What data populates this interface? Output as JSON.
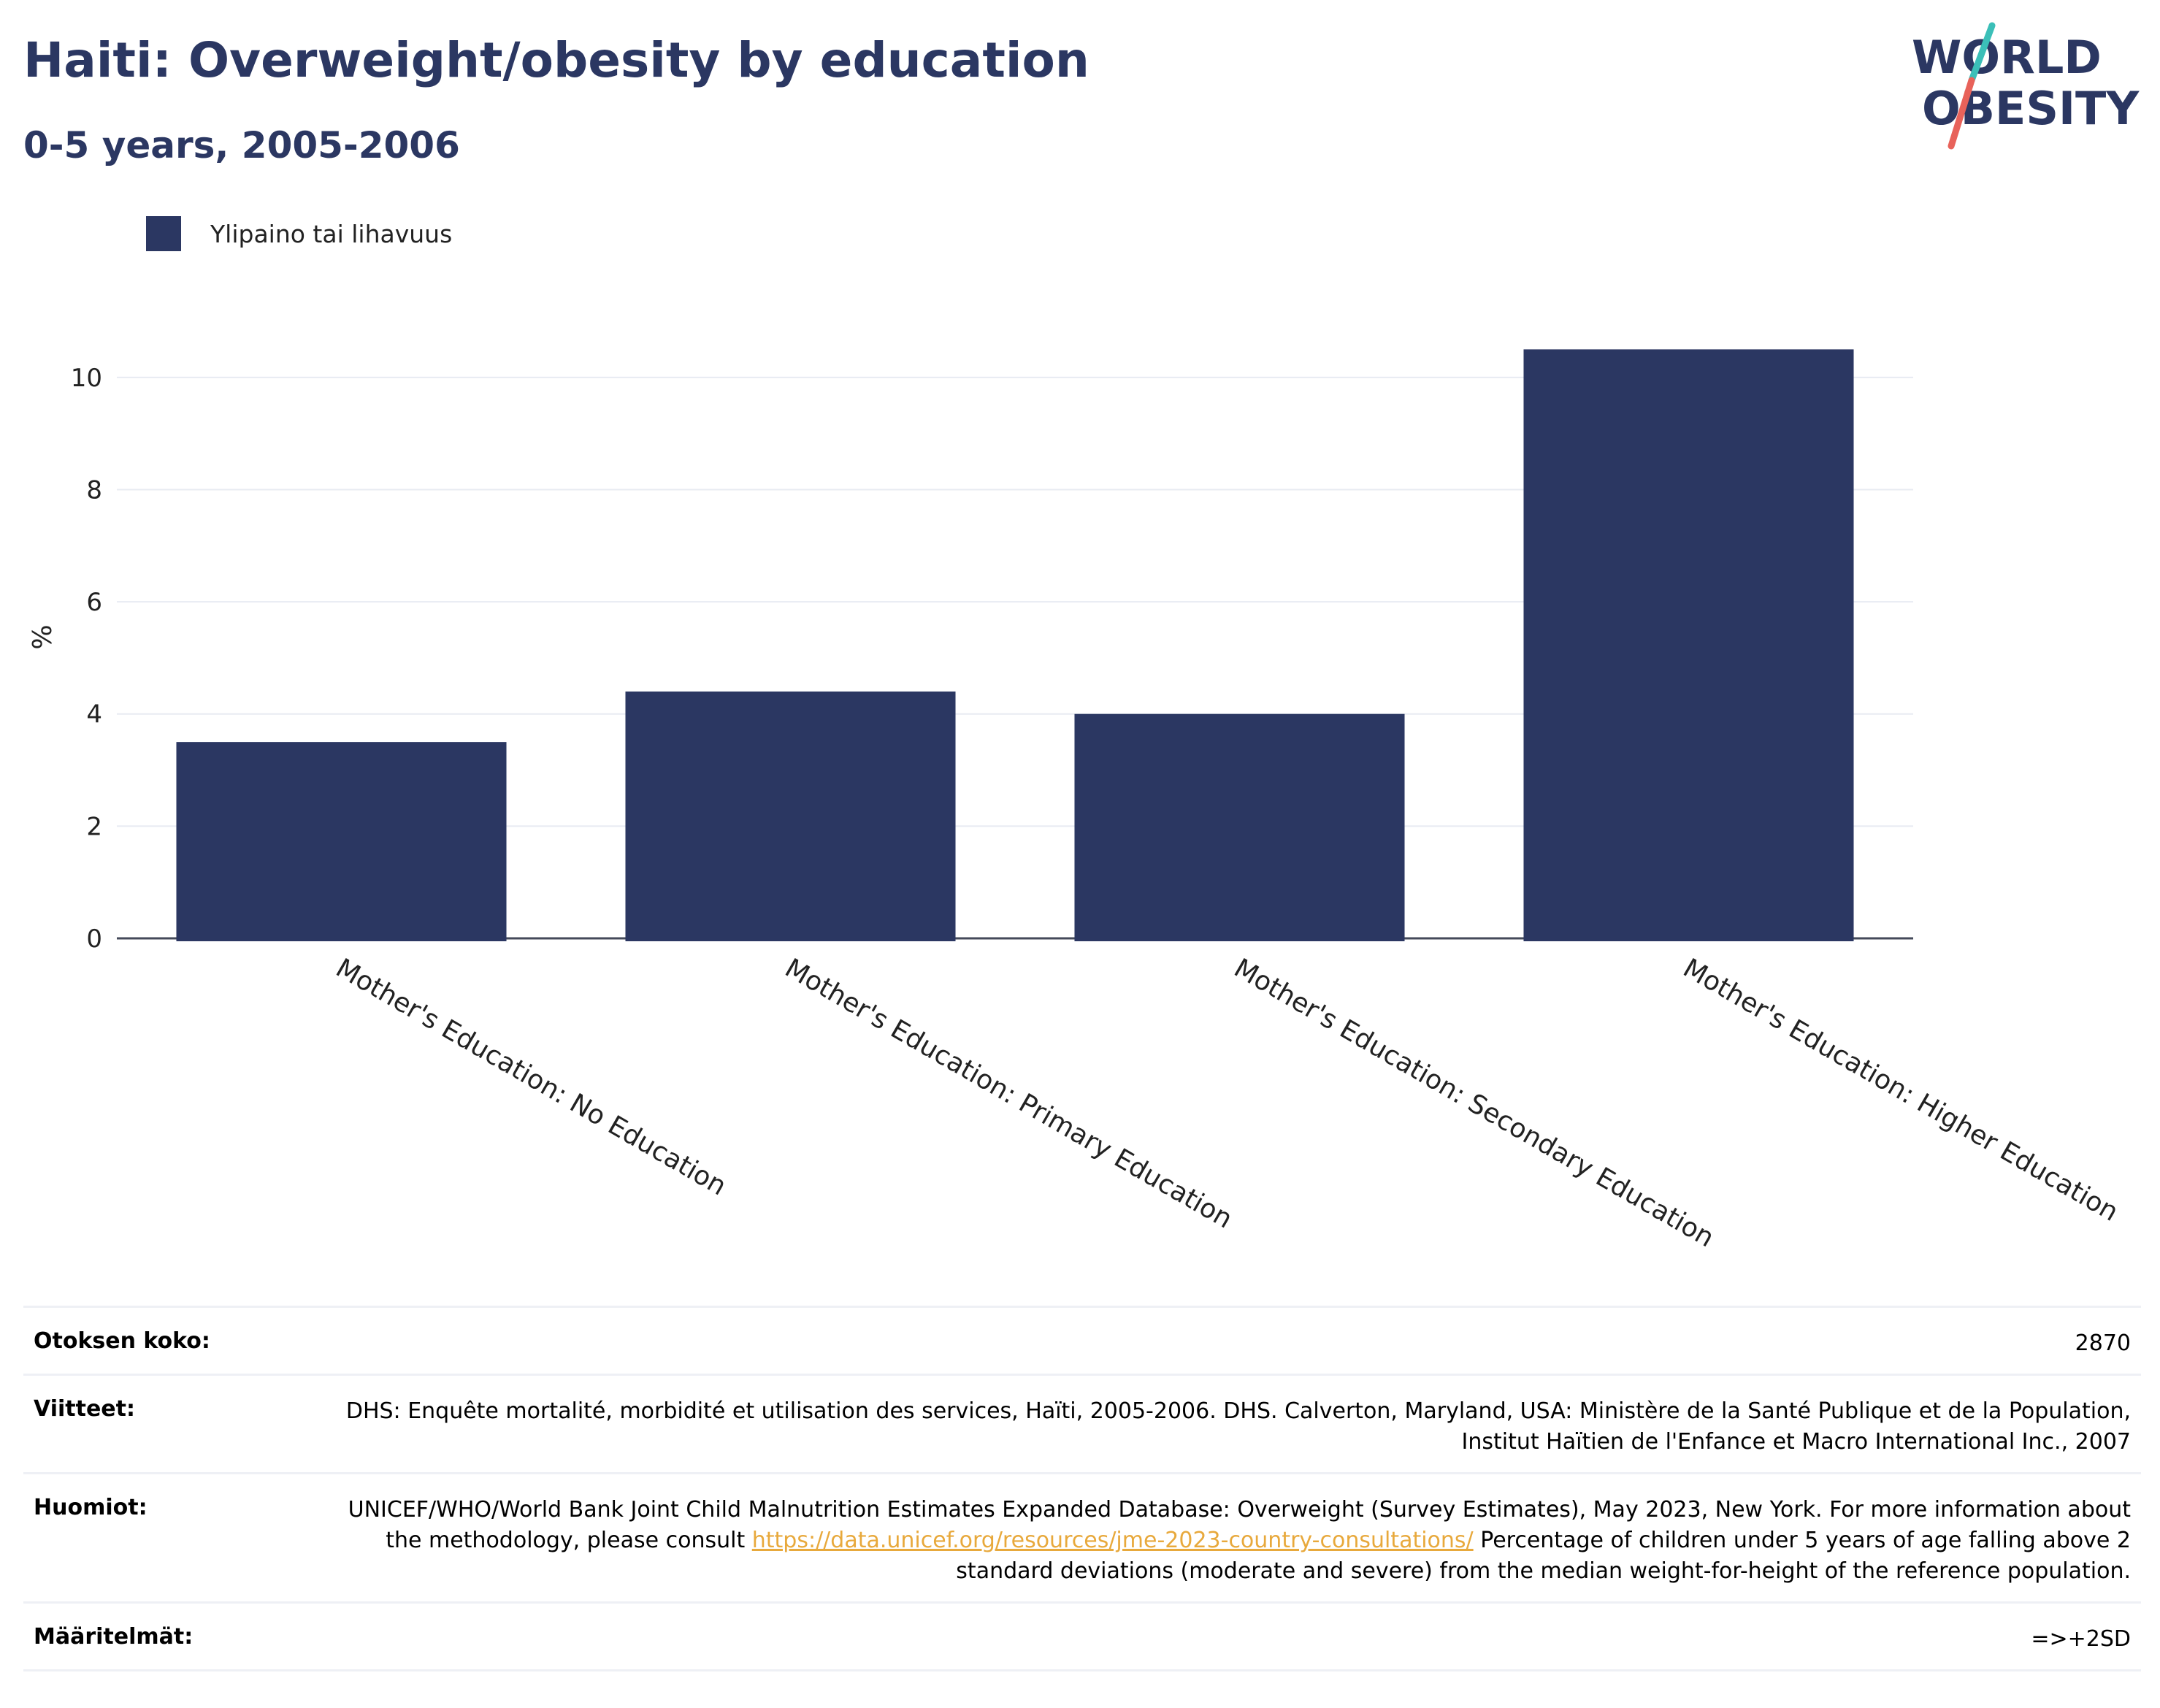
{
  "header": {
    "title": "Haiti: Overweight/obesity by education",
    "subtitle": "0-5 years, 2005-2006"
  },
  "logo": {
    "line1": "WORLD",
    "line2": "OBESITY",
    "colors": {
      "text": "#2b3762",
      "slash_teal": "#3bbfb8",
      "slash_coral": "#e8625a"
    }
  },
  "legend": {
    "label": "Ylipaino tai lihavuus",
    "color": "#2b3762"
  },
  "chart_data": {
    "type": "bar",
    "categories": [
      "Mother's Education: No Education",
      "Mother's Education: Primary Education",
      "Mother's Education: Secondary Education",
      "Mother's Education: Higher Education"
    ],
    "series": [
      {
        "name": "Ylipaino tai lihavuus",
        "values": [
          3.5,
          4.4,
          4.0,
          10.5
        ],
        "color": "#2b3762"
      }
    ],
    "ylabel": "%",
    "xlabel": "",
    "ylim": [
      0,
      11
    ],
    "yticks": [
      0,
      2,
      4,
      6,
      8,
      10
    ],
    "grid": true,
    "legend_position": "top-left"
  },
  "meta": {
    "rows": [
      {
        "key": "Otoksen koko:",
        "value": "2870"
      },
      {
        "key": "Viitteet:",
        "value": "DHS: Enquête mortalité, morbidité et utilisation des services, Haïti, 2005-2006. DHS. Calverton, Maryland, USA: Ministère de la Santé Publique et de la Population, Institut Haïtien de l'Enfance et Macro International Inc., 2007"
      },
      {
        "key": "Huomiot:",
        "value_before": "UNICEF/WHO/World Bank Joint Child Malnutrition Estimates Expanded Database: Overweight (Survey Estimates), May 2023, New York. For more information about the methodology, please consult ",
        "link": "https://data.unicef.org/resources/jme-2023-country-consultations/",
        "value_after": " Percentage of children under 5 years of age falling above 2 standard deviations (moderate and severe) from the median weight-for-height of the reference population."
      },
      {
        "key": "Määritelmät:",
        "value": "=>+2SD"
      }
    ]
  }
}
